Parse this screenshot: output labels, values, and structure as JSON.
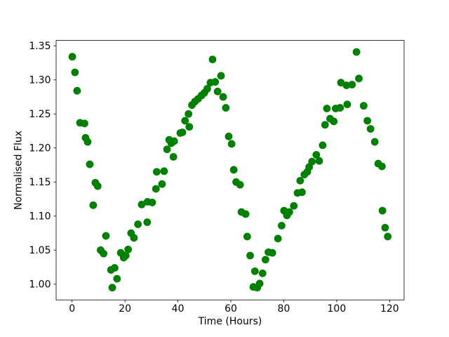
{
  "figure": {
    "background": "#ffffff",
    "axis_color": "#000000",
    "marker_color": "#008000"
  },
  "chart_data": {
    "type": "scatter",
    "title": "",
    "xlabel": "Time (Hours)",
    "ylabel": "Normalised Flux",
    "legend": null,
    "grid": false,
    "xlim": [
      -6.02,
      125.48
    ],
    "ylim": [
      0.9769,
      1.3579
    ],
    "xticks": [
      0,
      20,
      40,
      60,
      80,
      100,
      120
    ],
    "yticks": [
      1.0,
      1.05,
      1.1,
      1.15,
      1.2,
      1.25,
      1.3,
      1.35
    ],
    "marker": "circle",
    "points": [
      [
        0.1,
        1.334
      ],
      [
        1.1,
        1.311
      ],
      [
        1.9,
        1.284
      ],
      [
        3.0,
        1.237
      ],
      [
        4.7,
        1.236
      ],
      [
        5.1,
        1.215
      ],
      [
        5.9,
        1.209
      ],
      [
        6.7,
        1.176
      ],
      [
        8.0,
        1.116
      ],
      [
        8.8,
        1.149
      ],
      [
        9.7,
        1.144
      ],
      [
        10.8,
        1.05
      ],
      [
        11.9,
        1.045
      ],
      [
        12.8,
        1.071
      ],
      [
        14.7,
        1.021
      ],
      [
        15.2,
        0.995
      ],
      [
        16.1,
        1.024
      ],
      [
        17.0,
        1.008
      ],
      [
        18.4,
        1.046
      ],
      [
        19.5,
        1.039
      ],
      [
        20.3,
        1.042
      ],
      [
        21.2,
        1.051
      ],
      [
        22.3,
        1.075
      ],
      [
        23.4,
        1.068
      ],
      [
        24.9,
        1.088
      ],
      [
        26.3,
        1.117
      ],
      [
        28.4,
        1.091
      ],
      [
        28.5,
        1.121
      ],
      [
        30.3,
        1.12
      ],
      [
        31.7,
        1.14
      ],
      [
        32.0,
        1.165
      ],
      [
        34.0,
        1.147
      ],
      [
        34.8,
        1.166
      ],
      [
        35.9,
        1.198
      ],
      [
        36.7,
        1.212
      ],
      [
        37.5,
        1.207
      ],
      [
        38.3,
        1.187
      ],
      [
        38.6,
        1.21
      ],
      [
        40.9,
        1.222
      ],
      [
        41.7,
        1.223
      ],
      [
        42.7,
        1.24
      ],
      [
        44.0,
        1.25
      ],
      [
        44.3,
        1.231
      ],
      [
        45.3,
        1.263
      ],
      [
        46.4,
        1.268
      ],
      [
        47.6,
        1.272
      ],
      [
        48.9,
        1.277
      ],
      [
        50.0,
        1.281
      ],
      [
        51.1,
        1.287
      ],
      [
        52.3,
        1.296
      ],
      [
        53.1,
        1.33
      ],
      [
        54.1,
        1.297
      ],
      [
        55.0,
        1.283
      ],
      [
        56.3,
        1.306
      ],
      [
        57.1,
        1.275
      ],
      [
        58.1,
        1.259
      ],
      [
        59.2,
        1.217
      ],
      [
        60.3,
        1.206
      ],
      [
        61.1,
        1.168
      ],
      [
        62.0,
        1.15
      ],
      [
        63.5,
        1.146
      ],
      [
        64.0,
        1.106
      ],
      [
        65.6,
        1.103
      ],
      [
        66.2,
        1.07
      ],
      [
        67.3,
        1.042
      ],
      [
        68.5,
        0.996
      ],
      [
        69.1,
        1.019
      ],
      [
        70.0,
        0.995
      ],
      [
        70.9,
        1.001
      ],
      [
        72.0,
        1.016
      ],
      [
        73.1,
        1.036
      ],
      [
        74.2,
        1.047
      ],
      [
        75.7,
        1.046
      ],
      [
        77.8,
        1.067
      ],
      [
        79.2,
        1.086
      ],
      [
        80.1,
        1.108
      ],
      [
        81.2,
        1.101
      ],
      [
        82.1,
        1.106
      ],
      [
        83.8,
        1.115
      ],
      [
        85.2,
        1.134
      ],
      [
        86.2,
        1.152
      ],
      [
        86.9,
        1.135
      ],
      [
        87.8,
        1.161
      ],
      [
        88.9,
        1.165
      ],
      [
        89.6,
        1.172
      ],
      [
        90.7,
        1.18
      ],
      [
        92.3,
        1.19
      ],
      [
        93.4,
        1.181
      ],
      [
        94.7,
        1.204
      ],
      [
        95.6,
        1.234
      ],
      [
        96.3,
        1.258
      ],
      [
        97.5,
        1.243
      ],
      [
        98.9,
        1.239
      ],
      [
        99.6,
        1.258
      ],
      [
        101.3,
        1.259
      ],
      [
        101.6,
        1.296
      ],
      [
        103.7,
        1.292
      ],
      [
        104.0,
        1.264
      ],
      [
        105.8,
        1.293
      ],
      [
        107.5,
        1.341
      ],
      [
        108.4,
        1.302
      ],
      [
        110.2,
        1.262
      ],
      [
        111.6,
        1.24
      ],
      [
        112.8,
        1.228
      ],
      [
        114.4,
        1.209
      ],
      [
        115.7,
        1.177
      ],
      [
        117.1,
        1.173
      ],
      [
        117.3,
        1.108
      ],
      [
        118.3,
        1.083
      ],
      [
        119.3,
        1.07
      ]
    ]
  }
}
